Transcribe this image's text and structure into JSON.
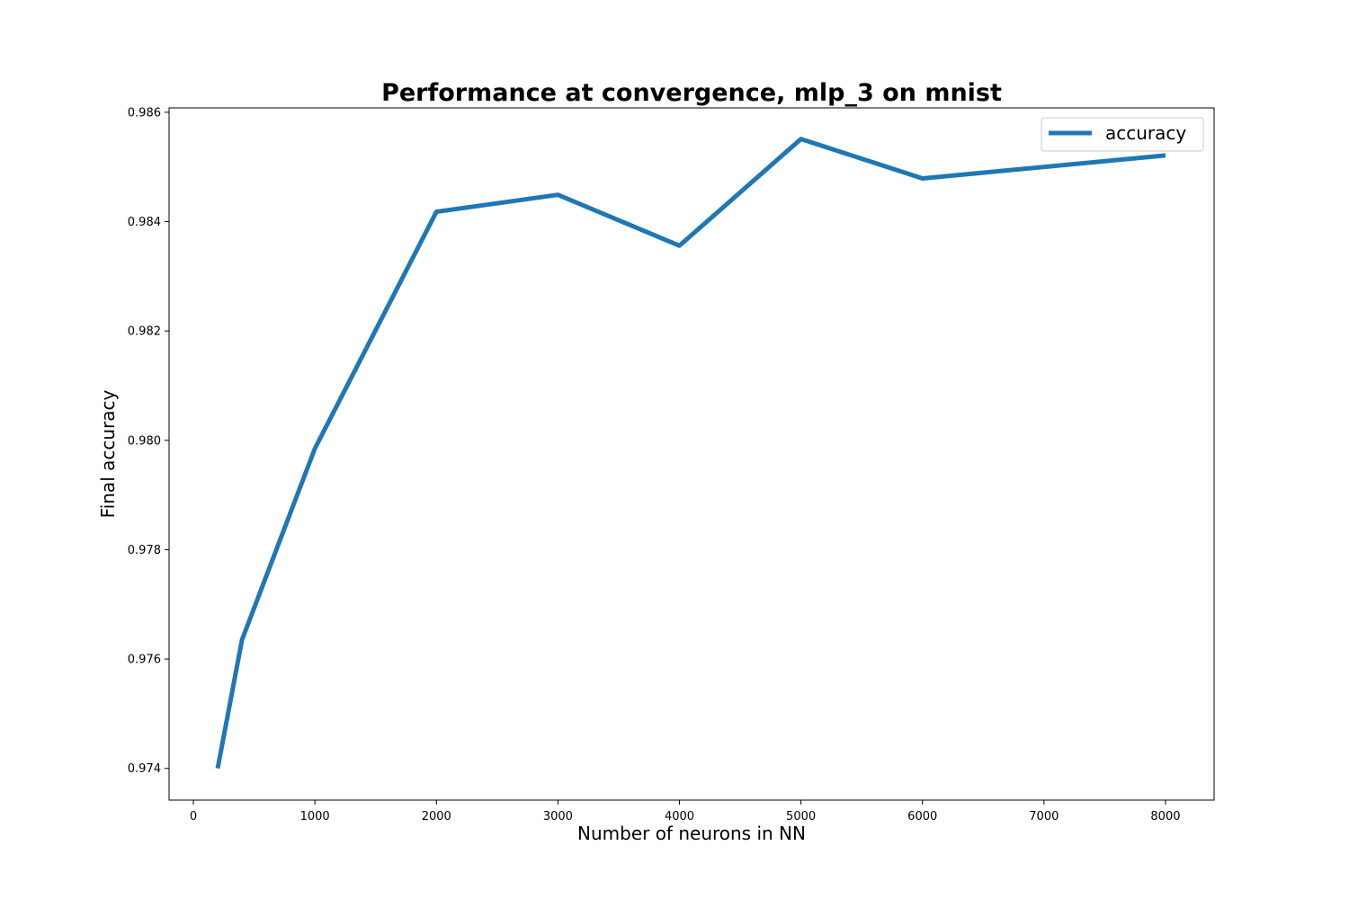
{
  "chart_data": {
    "type": "line",
    "title": "Performance at convergence, mlp_3 on mnist",
    "xlabel": "Number of neurons in NN",
    "ylabel": "Final accuracy",
    "xlim": [
      -200,
      8400
    ],
    "ylim": [
      0.97342,
      0.98608
    ],
    "xticks": [
      0,
      1000,
      2000,
      3000,
      4000,
      5000,
      6000,
      7000,
      8000
    ],
    "yticks": [
      0.974,
      0.976,
      0.978,
      0.98,
      0.982,
      0.984,
      0.986
    ],
    "xtick_labels": [
      "0",
      "1000",
      "2000",
      "3000",
      "4000",
      "5000",
      "6000",
      "7000",
      "8000"
    ],
    "ytick_labels": [
      "0.974",
      "0.976",
      "0.978",
      "0.980",
      "0.982",
      "0.984",
      "0.986"
    ],
    "grid": false,
    "legend_position": "top-right",
    "series": [
      {
        "name": "accuracy",
        "color": "#1f77b4",
        "x": [
          200,
          400,
          1000,
          2000,
          3000,
          4000,
          5000,
          6000,
          8000
        ],
        "y": [
          0.974,
          0.97635,
          0.97985,
          0.98418,
          0.98449,
          0.98356,
          0.98551,
          0.98479,
          0.98521
        ]
      }
    ]
  }
}
